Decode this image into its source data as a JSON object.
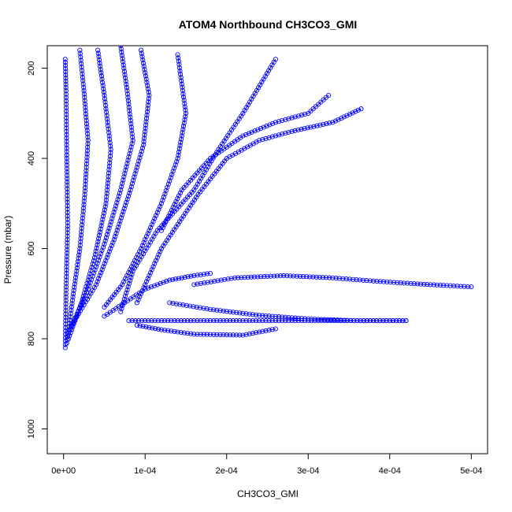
{
  "chart_data": {
    "type": "scatter",
    "title": "ATOM4 Northbound CH3CO3_GMI",
    "xlabel": "CH3CO3_GMI",
    "ylabel": "Pressure (mbar)",
    "xlim": [
      -2e-05,
      0.00052
    ],
    "ylim": [
      1055,
      150
    ],
    "y_reversed": true,
    "grid": false,
    "legend": "none",
    "marker": "open-circle",
    "color": "#0000ff",
    "x_ticks": [
      {
        "value": 0,
        "label": "0e+00"
      },
      {
        "value": 0.0001,
        "label": "1e-04"
      },
      {
        "value": 0.0002,
        "label": "2e-04"
      },
      {
        "value": 0.0003,
        "label": "3e-04"
      },
      {
        "value": 0.0004,
        "label": "4e-04"
      },
      {
        "value": 0.0005,
        "label": "5e-04"
      }
    ],
    "y_ticks": [
      {
        "value": 200,
        "label": "200"
      },
      {
        "value": 400,
        "label": "400"
      },
      {
        "value": 600,
        "label": "600"
      },
      {
        "value": 800,
        "label": "800"
      },
      {
        "value": 1000,
        "label": "1000"
      }
    ],
    "series": [
      {
        "x": [
          2e-06,
          3e-06,
          5e-06,
          4e-06,
          3e-06,
          2e-06
        ],
        "y": [
          820,
          700,
          550,
          400,
          250,
          180
        ]
      },
      {
        "x": [
          4e-06,
          1.2e-05,
          2e-05,
          2.6e-05,
          3e-05,
          2.5e-05,
          2e-05
        ],
        "y": [
          810,
          700,
          600,
          480,
          360,
          250,
          160
        ]
      },
      {
        "x": [
          6e-06,
          2.2e-05,
          3.8e-05,
          5.2e-05,
          5.8e-05,
          5e-05,
          4.2e-05
        ],
        "y": [
          800,
          720,
          620,
          500,
          380,
          260,
          160
        ]
      },
      {
        "x": [
          8e-06,
          3e-05,
          5e-05,
          7e-05,
          8.5e-05,
          7.8e-05,
          7e-05
        ],
        "y": [
          780,
          690,
          590,
          470,
          360,
          250,
          150
        ]
      },
      {
        "x": [
          1e-05,
          4e-05,
          6.2e-05,
          8.2e-05,
          9.8e-05,
          0.000105,
          9.5e-05
        ],
        "y": [
          770,
          680,
          580,
          470,
          370,
          260,
          160
        ]
      },
      {
        "x": [
          5e-05,
          7.2e-05,
          9.5e-05,
          0.00012,
          0.00014,
          0.00015,
          0.00014
        ],
        "y": [
          730,
          680,
          600,
          500,
          400,
          300,
          170
        ]
      },
      {
        "x": [
          7e-05,
          8.5e-05,
          0.000115,
          0.00016,
          0.00019,
          0.00022,
          0.00026
        ],
        "y": [
          740,
          650,
          560,
          470,
          380,
          300,
          180
        ]
      },
      {
        "x": [
          9e-05,
          0.00012,
          0.000165,
          0.0002,
          0.00024,
          0.00028,
          0.00033,
          0.000365
        ],
        "y": [
          720,
          600,
          480,
          400,
          360,
          340,
          320,
          290
        ]
      },
      {
        "x": [
          0.00012,
          0.000145,
          0.00018,
          0.00022,
          0.00026,
          0.0003,
          0.000325
        ],
        "y": [
          560,
          470,
          400,
          350,
          320,
          300,
          260
        ]
      },
      {
        "x": [
          0.00016,
          0.00021,
          0.00027,
          0.00033,
          0.00038,
          0.00043,
          0.00047,
          0.0005
        ],
        "y": [
          680,
          665,
          660,
          665,
          672,
          678,
          682,
          685
        ]
      },
      {
        "x": [
          0.00013,
          0.00018,
          0.00024,
          0.0003,
          0.00036,
          0.00042
        ],
        "y": [
          720,
          735,
          748,
          756,
          760,
          760
        ]
      },
      {
        "x": [
          9e-05,
          0.00012,
          0.00016,
          0.00022,
          0.00026
        ],
        "y": [
          770,
          780,
          790,
          792,
          778
        ]
      },
      {
        "x": [
          8e-05,
          0.00014,
          0.0002,
          0.00026,
          0.00032,
          0.00038,
          0.00042
        ],
        "y": [
          760,
          760,
          760,
          760,
          760,
          760,
          760
        ]
      },
      {
        "x": [
          5e-05,
          7.5e-05,
          0.0001,
          0.00013,
          0.00016,
          0.00018
        ],
        "y": [
          750,
          720,
          690,
          670,
          660,
          655
        ]
      }
    ]
  }
}
